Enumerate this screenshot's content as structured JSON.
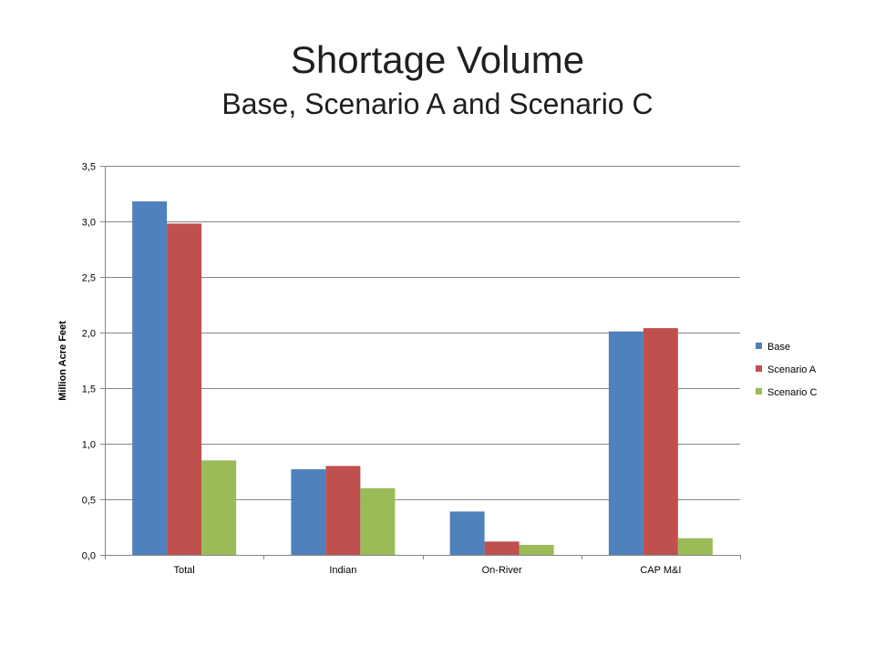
{
  "chart_data": {
    "type": "bar",
    "title": "Shortage Volume",
    "subtitle": "Base, Scenario A and Scenario C",
    "xlabel": "",
    "ylabel": "Million Acre Feet",
    "categories": [
      "Total",
      "Indian",
      "On-River",
      "CAP M&I"
    ],
    "series": [
      {
        "name": "Base",
        "color": "#4f81bd",
        "values": [
          3.18,
          0.77,
          0.39,
          2.01
        ]
      },
      {
        "name": "Scenario A",
        "color": "#c0504d",
        "values": [
          2.98,
          0.8,
          0.12,
          2.04
        ]
      },
      {
        "name": "Scenario C",
        "color": "#9bbb59",
        "values": [
          0.85,
          0.6,
          0.09,
          0.15
        ]
      }
    ],
    "ylim": [
      0,
      3.5
    ],
    "yticks": [
      0.0,
      0.5,
      1.0,
      1.5,
      2.0,
      2.5,
      3.0,
      3.5
    ],
    "ytick_labels": [
      "0,0",
      "0,5",
      "1,0",
      "1,5",
      "2,0",
      "2,5",
      "3,0",
      "3,5"
    ],
    "grid": true,
    "legend": "right"
  }
}
